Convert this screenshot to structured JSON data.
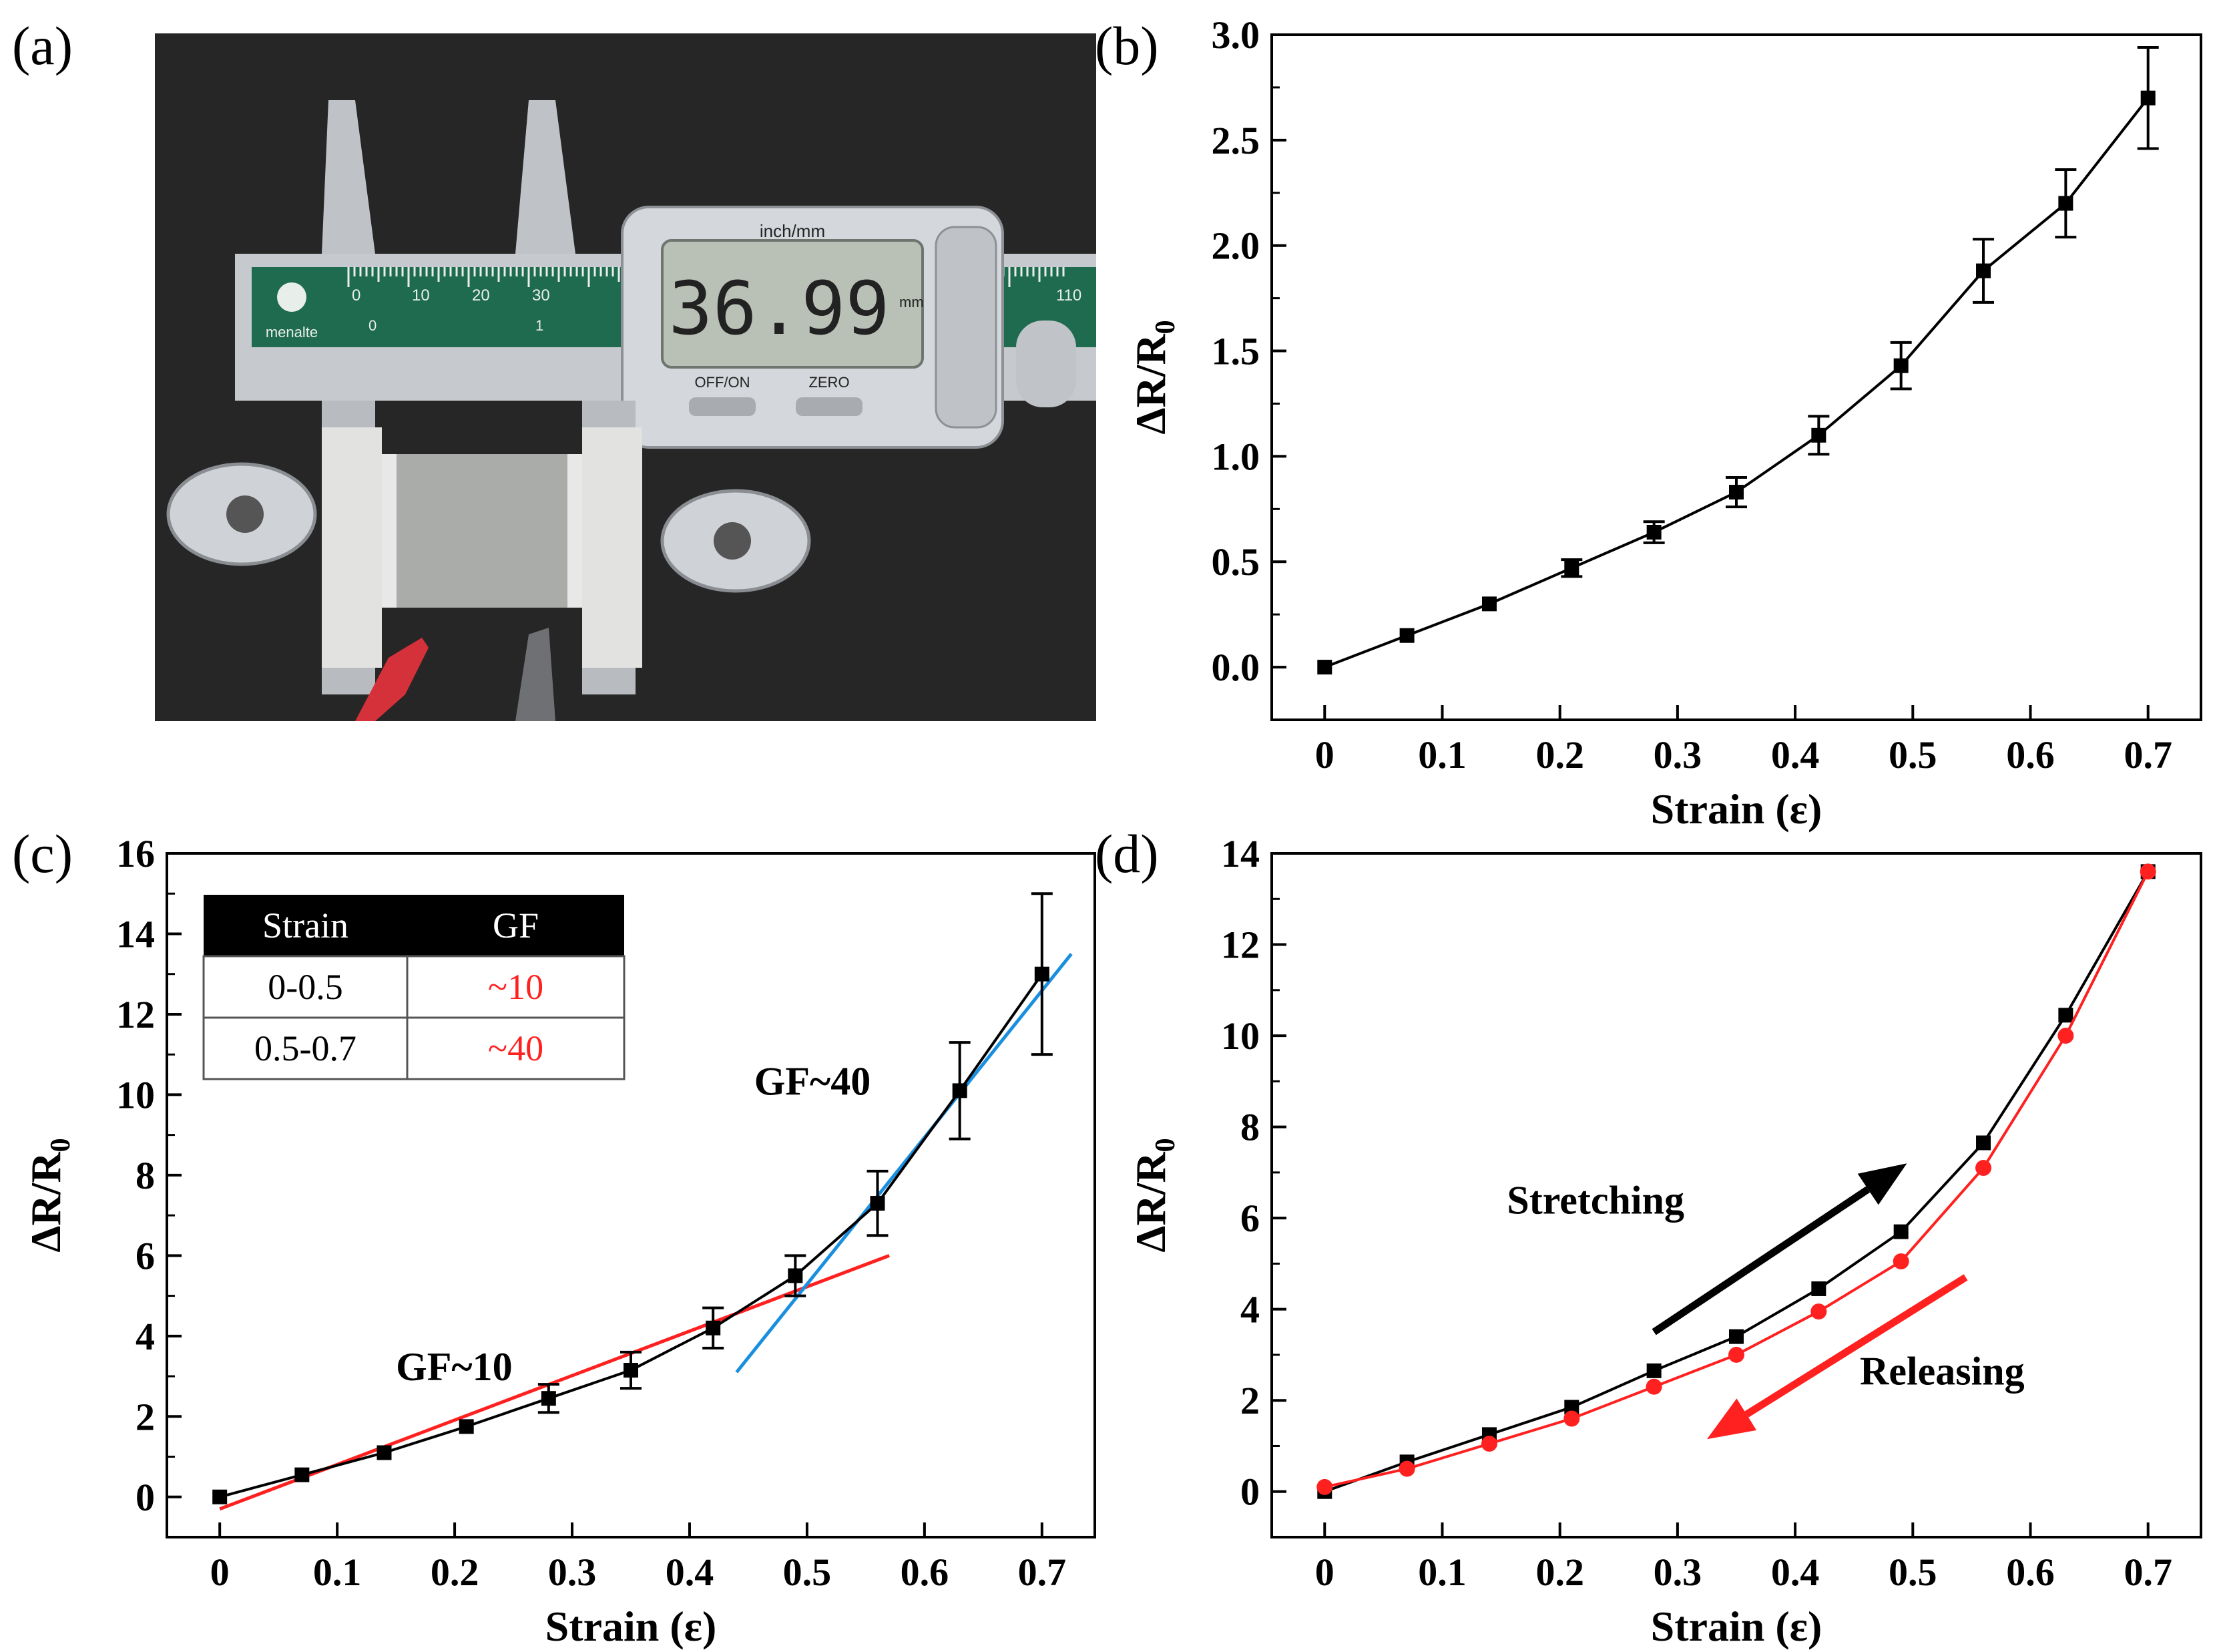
{
  "panel_labels": [
    "(a)",
    "(b)",
    "(c)",
    "(d)"
  ],
  "photo": {
    "caliper_brand": "menalte",
    "unit_label": "inch/mm",
    "reading": "36.99",
    "reading_unit": "mm",
    "button_left": "OFF/ON",
    "button_right": "ZERO",
    "scale_numbers": [
      "0",
      "10",
      "20",
      "30",
      "110"
    ],
    "scale_inch_numbers": [
      "0",
      "1"
    ],
    "colors": {
      "background": "#262626",
      "scale": "#1f6b4f",
      "body": "#c9ccd0",
      "lcd": "#b9c0b6",
      "clip_red": "#d5313a"
    }
  },
  "chart_data": [
    {
      "panel": "(b)",
      "type": "line",
      "xlabel": "Strain (ε)",
      "ylabel_main": "ΔR/R",
      "ylabel_sub": "0",
      "xlim": [
        -0.045,
        0.745
      ],
      "ylim": [
        -0.25,
        3.0
      ],
      "xticks": [
        0,
        0.1,
        0.2,
        0.3,
        0.4,
        0.5,
        0.6,
        0.7
      ],
      "xtick_labels": [
        "0",
        "0.1",
        "0.2",
        "0.3",
        "0.4",
        "0.5",
        "0.6",
        "0.7"
      ],
      "yticks": [
        0,
        0.5,
        1.0,
        1.5,
        2.0,
        2.5,
        3.0
      ],
      "ytick_labels": [
        "0.0",
        "0.5",
        "1.0",
        "1.5",
        "2.0",
        "2.5",
        "3.0"
      ],
      "series": [
        {
          "color": "#000000",
          "marker": "square",
          "x": [
            0,
            0.07,
            0.14,
            0.21,
            0.28,
            0.35,
            0.42,
            0.49,
            0.56,
            0.63,
            0.7
          ],
          "y": [
            0.0,
            0.15,
            0.3,
            0.47,
            0.64,
            0.83,
            1.1,
            1.43,
            1.88,
            2.2,
            2.7
          ],
          "err": [
            0.0,
            0.0,
            0.0,
            0.04,
            0.05,
            0.07,
            0.09,
            0.11,
            0.15,
            0.16,
            0.24
          ]
        }
      ]
    },
    {
      "panel": "(c)",
      "type": "line",
      "xlabel": "Strain (ε)",
      "ylabel_main": "ΔR/R",
      "ylabel_sub": "0",
      "xlim": [
        -0.045,
        0.745
      ],
      "ylim": [
        -1.0,
        16.0
      ],
      "xticks": [
        0,
        0.1,
        0.2,
        0.3,
        0.4,
        0.5,
        0.6,
        0.7
      ],
      "xtick_labels": [
        "0",
        "0.1",
        "0.2",
        "0.3",
        "0.4",
        "0.5",
        "0.6",
        "0.7"
      ],
      "yticks": [
        0,
        2,
        4,
        6,
        8,
        10,
        12,
        14,
        16
      ],
      "ytick_labels": [
        "0",
        "2",
        "4",
        "6",
        "8",
        "10",
        "12",
        "14",
        "16"
      ],
      "series": [
        {
          "color": "#000000",
          "marker": "square",
          "x": [
            0,
            0.07,
            0.14,
            0.21,
            0.28,
            0.35,
            0.42,
            0.49,
            0.56,
            0.63,
            0.7
          ],
          "y": [
            0.0,
            0.55,
            1.1,
            1.75,
            2.45,
            3.15,
            4.2,
            5.5,
            7.3,
            10.1,
            13.0
          ],
          "err": [
            0.0,
            0.0,
            0.0,
            0.0,
            0.35,
            0.45,
            0.5,
            0.5,
            0.8,
            1.2,
            2.0
          ]
        }
      ],
      "fits": [
        {
          "label": "GF~10",
          "color": "#ff2020",
          "x": [
            0,
            0.57
          ],
          "y": [
            -0.3,
            6.0
          ]
        },
        {
          "label": "GF~40",
          "color": "#1a8fe0",
          "x": [
            0.44,
            0.725
          ],
          "y": [
            3.1,
            13.5
          ]
        }
      ],
      "annotations": [
        {
          "text": "GF~10",
          "x": 0.15,
          "y": 2.9,
          "color": "#000000"
        },
        {
          "text": "GF~40",
          "x": 0.455,
          "y": 10.0,
          "color": "#000000"
        }
      ],
      "inset_table": {
        "headers": [
          "Strain",
          "GF"
        ],
        "rows": [
          [
            "0-0.5",
            "~10"
          ],
          [
            "0.5-0.7",
            "~40"
          ]
        ],
        "value_color": "#ff2020"
      }
    },
    {
      "panel": "(d)",
      "type": "line",
      "xlabel": "Strain (ε)",
      "ylabel_main": "ΔR/R",
      "ylabel_sub": "0",
      "xlim": [
        -0.045,
        0.745
      ],
      "ylim": [
        -1.0,
        14.0
      ],
      "xticks": [
        0,
        0.1,
        0.2,
        0.3,
        0.4,
        0.5,
        0.6,
        0.7
      ],
      "xtick_labels": [
        "0",
        "0.1",
        "0.2",
        "0.3",
        "0.4",
        "0.5",
        "0.6",
        "0.7"
      ],
      "yticks": [
        0,
        2,
        4,
        6,
        8,
        10,
        12,
        14
      ],
      "ytick_labels": [
        "0",
        "2",
        "4",
        "6",
        "8",
        "10",
        "12",
        "14"
      ],
      "series": [
        {
          "color": "#000000",
          "marker": "square",
          "x": [
            0,
            0.07,
            0.14,
            0.21,
            0.28,
            0.35,
            0.42,
            0.49,
            0.56,
            0.63,
            0.7
          ],
          "y": [
            0.0,
            0.65,
            1.25,
            1.85,
            2.65,
            3.4,
            4.45,
            5.7,
            7.65,
            10.45,
            13.6
          ]
        },
        {
          "color": "#ff2020",
          "marker": "circle",
          "x": [
            0,
            0.07,
            0.14,
            0.21,
            0.28,
            0.35,
            0.42,
            0.49,
            0.56,
            0.63,
            0.7
          ],
          "y": [
            0.1,
            0.5,
            1.05,
            1.6,
            2.3,
            3.0,
            3.95,
            5.05,
            7.1,
            10.0,
            13.6
          ]
        }
      ],
      "annotations": [
        {
          "text": "Stretching",
          "x": 0.155,
          "y": 6.1,
          "color": "#000000"
        },
        {
          "text": "Releasing",
          "x": 0.455,
          "y": 2.35,
          "color": "#000000"
        }
      ],
      "arrows": [
        {
          "color": "#000000",
          "from": [
            0.28,
            3.5
          ],
          "to": [
            0.495,
            7.2
          ]
        },
        {
          "color": "#ff2020",
          "from": [
            0.545,
            4.7
          ],
          "to": [
            0.325,
            1.15
          ]
        }
      ]
    }
  ]
}
